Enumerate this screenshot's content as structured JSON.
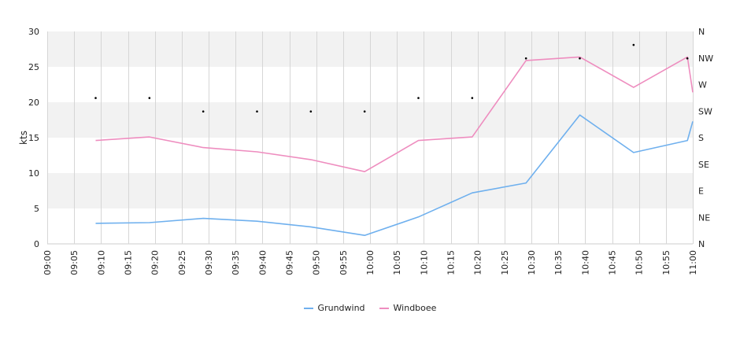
{
  "chart_data": {
    "type": "line",
    "ylabel": "kts",
    "ylim": [
      0,
      30
    ],
    "y_ticks": [
      "0",
      "5",
      "10",
      "15",
      "20",
      "25",
      "30"
    ],
    "x_ticks": [
      "09:00",
      "09:05",
      "09:10",
      "09:15",
      "09:20",
      "09:25",
      "09:30",
      "09:35",
      "09:40",
      "09:45",
      "09:50",
      "09:55",
      "10:00",
      "10:05",
      "10:10",
      "10:15",
      "10:20",
      "10:25",
      "10:30",
      "10:35",
      "10:40",
      "10:45",
      "10:50",
      "10:55",
      "11:00"
    ],
    "y2_ticks": [
      "N",
      "NE",
      "E",
      "SE",
      "S",
      "SW",
      "W",
      "NW",
      "N"
    ],
    "grid": true,
    "legend_position": "bottom",
    "series": [
      {
        "name": "Grundwind",
        "color": "#6fb0ee",
        "points": [
          [
            "09:09",
            2.9
          ],
          [
            "09:19",
            3.0
          ],
          [
            "09:29",
            3.6
          ],
          [
            "09:39",
            3.2
          ],
          [
            "09:49",
            2.4
          ],
          [
            "09:59",
            1.2
          ],
          [
            "10:09",
            3.8
          ],
          [
            "10:19",
            7.2
          ],
          [
            "10:29",
            8.6
          ],
          [
            "10:39",
            18.2
          ],
          [
            "10:49",
            12.9
          ],
          [
            "10:59",
            14.6
          ],
          [
            "11:00",
            17.3
          ]
        ]
      },
      {
        "name": "Windboee",
        "color": "#ee8dbf",
        "points": [
          [
            "09:09",
            14.6
          ],
          [
            "09:19",
            15.1
          ],
          [
            "09:29",
            13.6
          ],
          [
            "09:39",
            13.0
          ],
          [
            "09:49",
            11.9
          ],
          [
            "09:59",
            10.2
          ],
          [
            "10:09",
            14.6
          ],
          [
            "10:19",
            15.1
          ],
          [
            "10:29",
            25.9
          ],
          [
            "10:39",
            26.4
          ],
          [
            "10:49",
            22.1
          ],
          [
            "10:59",
            26.4
          ],
          [
            "11:00",
            21.4
          ]
        ]
      }
    ],
    "direction_points": [
      [
        "09:09",
        20.6
      ],
      [
        "09:19",
        20.6
      ],
      [
        "09:29",
        18.7
      ],
      [
        "09:39",
        18.7
      ],
      [
        "09:49",
        18.7
      ],
      [
        "09:59",
        18.7
      ],
      [
        "10:09",
        20.6
      ],
      [
        "10:19",
        20.6
      ],
      [
        "10:29",
        26.2
      ],
      [
        "10:39",
        26.2
      ],
      [
        "10:49",
        28.1
      ],
      [
        "10:59",
        26.2
      ]
    ]
  }
}
